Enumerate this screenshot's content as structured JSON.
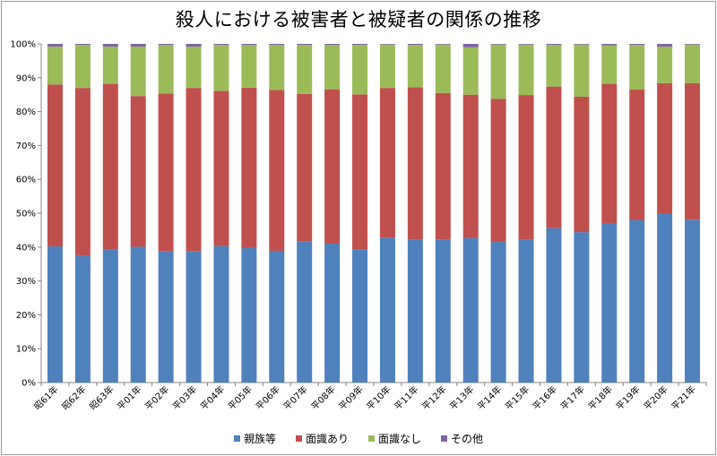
{
  "chart_data": {
    "type": "bar",
    "stacked": true,
    "title": "殺人における被害者と被疑者の関係の推移",
    "categories": [
      "昭61年",
      "昭62年",
      "昭63年",
      "平01年",
      "平02年",
      "平03年",
      "平04年",
      "平05年",
      "平06年",
      "平07年",
      "平08年",
      "平09年",
      "平10年",
      "平11年",
      "平12年",
      "平13年",
      "平14年",
      "平15年",
      "平16年",
      "平17年",
      "平18年",
      "平19年",
      "平20年",
      "平21年"
    ],
    "series": [
      {
        "name": "親族等",
        "color": "#4f81bd",
        "values": [
          40.2,
          37.4,
          39.2,
          40.1,
          38.7,
          38.8,
          40.3,
          39.8,
          38.9,
          41.7,
          41.0,
          39.2,
          42.8,
          42.3,
          42.3,
          42.7,
          41.5,
          42.3,
          45.6,
          44.4,
          47.1,
          48.0,
          50.0,
          48.1
        ]
      },
      {
        "name": "面識あり",
        "color": "#c0504d",
        "values": [
          47.8,
          49.6,
          49.0,
          44.5,
          46.6,
          48.2,
          45.8,
          47.3,
          47.5,
          43.5,
          45.6,
          45.9,
          44.2,
          44.9,
          43.2,
          42.3,
          42.3,
          42.6,
          41.8,
          40.0,
          41.1,
          38.5,
          38.4,
          40.3
        ]
      },
      {
        "name": "面識なし",
        "color": "#9bbb59",
        "values": [
          11.2,
          12.7,
          11.0,
          14.6,
          14.4,
          12.2,
          13.6,
          12.6,
          13.3,
          14.5,
          13.1,
          14.6,
          12.8,
          12.5,
          14.3,
          14.0,
          16.0,
          14.9,
          12.3,
          15.4,
          11.4,
          13.2,
          10.8,
          11.4
        ]
      },
      {
        "name": "その他",
        "color": "#8064a2",
        "values": [
          0.8,
          0.3,
          0.8,
          0.8,
          0.3,
          0.8,
          0.3,
          0.3,
          0.3,
          0.3,
          0.3,
          0.3,
          0.2,
          0.3,
          0.2,
          1.0,
          0.2,
          0.2,
          0.3,
          0.2,
          0.4,
          0.3,
          0.8,
          0.2
        ]
      }
    ],
    "ylim": [
      0,
      100
    ],
    "yticks": [
      "0%",
      "10%",
      "20%",
      "30%",
      "40%",
      "50%",
      "60%",
      "70%",
      "80%",
      "90%",
      "100%"
    ],
    "grid": false,
    "legend": "bottom"
  }
}
